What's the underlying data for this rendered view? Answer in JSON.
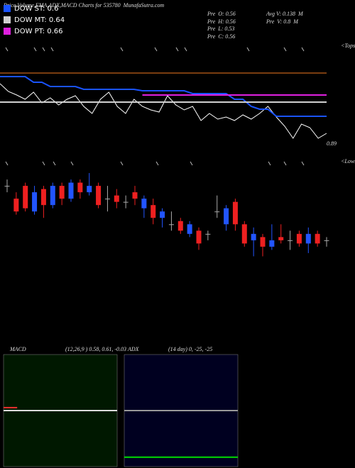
{
  "chart_data": [
    {
      "type": "line",
      "title": "Price,Volume,EMA,ADX,MACD Charts for 535780  MunafaSutra.com",
      "annotations": [
        "Pre  O: 0.56",
        "Pre  H: 0.56",
        "Pre  L: 0.53",
        "Pre  C: 0.56",
        "Avg V: 0.138  M",
        "Pre  V: 0.8  M",
        "0.89",
        "<Tops"
      ],
      "ylim": [
        0.5,
        0.76
      ],
      "series": [
        {
          "color": "#ffffff",
          "values": [
            0.692,
            0.67,
            0.66,
            0.648,
            0.668,
            0.638,
            0.652,
            0.632,
            0.648,
            0.658,
            0.628,
            0.608,
            0.648,
            0.668,
            0.628,
            0.608,
            0.648,
            0.628,
            0.618,
            0.612,
            0.658,
            0.632,
            0.618,
            0.628,
            0.588,
            0.608,
            0.592,
            0.598,
            0.588,
            0.604,
            0.592,
            0.608,
            0.628,
            0.598,
            0.572,
            0.538,
            0.578,
            0.568,
            0.538,
            0.552
          ]
        },
        {
          "name": "DOW ST: 0.6",
          "color": "#1a53ff",
          "values": [
            0.712,
            0.712,
            0.712,
            0.712,
            0.696,
            0.696,
            0.684,
            0.684,
            0.684,
            0.684,
            0.676,
            0.676,
            0.676,
            0.676,
            0.676,
            0.676,
            0.676,
            0.672,
            0.672,
            0.672,
            0.672,
            0.672,
            0.672,
            0.664,
            0.664,
            0.664,
            0.664,
            0.664,
            0.648,
            0.648,
            0.628,
            0.62,
            0.62,
            0.6,
            0.6,
            0.6,
            0.6,
            0.6,
            0.6,
            0.6
          ]
        },
        {
          "name": "DOW MT: 0.64",
          "color": "#d0d0d0",
          "values": [
            0.64,
            0.64,
            0.64,
            0.64,
            0.64,
            0.64,
            0.64,
            0.64,
            0.64,
            0.64,
            0.64,
            0.64,
            0.64,
            0.64,
            0.64,
            0.64,
            0.64,
            0.64,
            0.64,
            0.64,
            0.64,
            0.64,
            0.64,
            0.64,
            0.64,
            0.64,
            0.64,
            0.64,
            0.64,
            0.64,
            0.64,
            0.64,
            0.64,
            0.64,
            0.64,
            0.64,
            0.64,
            0.64,
            0.64,
            0.64
          ]
        },
        {
          "name": "DOW PT: 0.66",
          "color": "#e020e0",
          "values": [
            null,
            null,
            null,
            null,
            null,
            null,
            null,
            null,
            null,
            null,
            null,
            null,
            null,
            null,
            null,
            null,
            null,
            0.66,
            0.66,
            0.66,
            0.66,
            0.66,
            0.66,
            0.66,
            0.66,
            0.66,
            0.66,
            0.66,
            0.66,
            0.66,
            0.66,
            0.66,
            0.66,
            0.66,
            0.66,
            0.66,
            0.66,
            0.66,
            0.66,
            0.66
          ]
        },
        {
          "color": "#7a3d10",
          "values": [
            0.722,
            0.722,
            0.722,
            0.722,
            0.722,
            0.722,
            0.722,
            0.722,
            0.722,
            0.722,
            0.722,
            0.722,
            0.722,
            0.722,
            0.722,
            0.722,
            0.722,
            0.722,
            0.722,
            0.722,
            0.722,
            0.722,
            0.722,
            0.722,
            0.722,
            0.722,
            0.722,
            0.722,
            0.722,
            0.722,
            0.722,
            0.722,
            0.722,
            0.722,
            0.722,
            0.722,
            0.722,
            0.722,
            0.722,
            0.722
          ]
        }
      ]
    },
    {
      "type": "candlestick",
      "annotations": [
        "<Lows"
      ],
      "ylim": [
        0.45,
        0.76
      ],
      "up_color": "#2255ff",
      "down_color": "#ee2020",
      "flat_color": "#aaaaaa",
      "open": [
        0.7,
        0.66,
        0.7,
        0.62,
        0.69,
        0.64,
        0.7,
        0.66,
        0.71,
        0.68,
        0.7,
        0.66,
        0.67,
        0.65,
        0.68,
        0.63,
        0.64,
        0.6,
        0.58,
        0.59,
        0.55,
        0.56,
        0.55,
        0.62,
        0.58,
        0.65,
        0.58,
        0.53,
        0.54,
        0.51,
        0.54,
        0.53,
        0.55,
        0.52,
        0.55,
        0.53
      ],
      "high": [
        0.72,
        0.68,
        0.71,
        0.7,
        0.7,
        0.71,
        0.71,
        0.72,
        0.72,
        0.74,
        0.71,
        0.7,
        0.69,
        0.67,
        0.7,
        0.67,
        0.66,
        0.63,
        0.62,
        0.6,
        0.59,
        0.57,
        0.56,
        0.67,
        0.64,
        0.66,
        0.59,
        0.57,
        0.55,
        0.58,
        0.58,
        0.56,
        0.56,
        0.57,
        0.56,
        0.54
      ],
      "low": [
        0.68,
        0.61,
        0.62,
        0.61,
        0.6,
        0.63,
        0.64,
        0.65,
        0.66,
        0.67,
        0.63,
        0.62,
        0.63,
        0.63,
        0.64,
        0.6,
        0.58,
        0.57,
        0.56,
        0.55,
        0.54,
        0.5,
        0.53,
        0.6,
        0.56,
        0.56,
        0.51,
        0.48,
        0.48,
        0.5,
        0.52,
        0.5,
        0.51,
        0.49,
        0.51,
        0.51
      ],
      "close": [
        0.7,
        0.62,
        0.63,
        0.68,
        0.64,
        0.7,
        0.66,
        0.71,
        0.68,
        0.7,
        0.64,
        0.66,
        0.65,
        0.65,
        0.66,
        0.66,
        0.6,
        0.62,
        0.58,
        0.56,
        0.58,
        0.52,
        0.55,
        0.62,
        0.63,
        0.58,
        0.52,
        0.55,
        0.51,
        0.53,
        0.53,
        0.53,
        0.52,
        0.55,
        0.52,
        0.53
      ]
    },
    {
      "type": "line",
      "title": "MACD",
      "subtitle": "(12,26,9 ) 0.58, 0.61, -0.03",
      "background": "#001800",
      "xlim": [
        0,
        1
      ],
      "ylim": [
        0,
        1.16
      ],
      "series": [
        {
          "color": "#dddddd",
          "x": [
            0,
            1
          ],
          "values": [
            0.58,
            0.58
          ]
        },
        {
          "color": "#ee3030",
          "x": [
            0,
            0.12
          ],
          "values": [
            0.61,
            0.61
          ]
        }
      ]
    },
    {
      "type": "line",
      "title": "ADX",
      "subtitle": "(14 day) 0, -25, -25",
      "background": "#000020",
      "xlim": [
        0,
        1
      ],
      "ylim": [
        -30,
        30
      ],
      "series": [
        {
          "color": "#999999",
          "x": [
            0,
            1
          ],
          "values": [
            0,
            0
          ]
        },
        {
          "color": "#00dd00",
          "x": [
            0,
            1
          ],
          "values": [
            -25,
            -25
          ]
        }
      ]
    }
  ]
}
